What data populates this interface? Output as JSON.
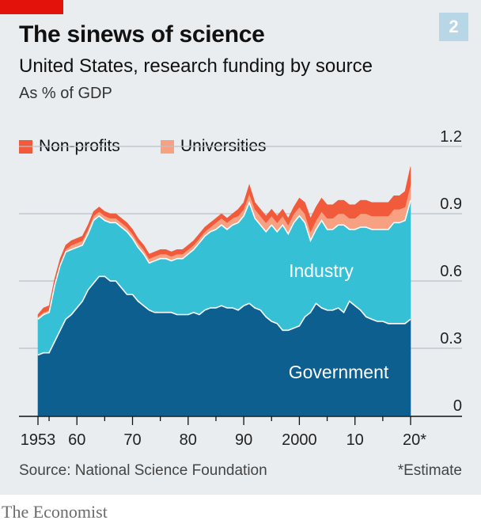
{
  "header": {
    "title": "The sinews of science",
    "chart_number": "2",
    "subtitle": "United States, research funding by source",
    "unit": "As % of GDP"
  },
  "legend": [
    {
      "label": "Non-profits",
      "color": "#f15a3a"
    },
    {
      "label": "Universities",
      "color": "#f7a182"
    }
  ],
  "area_labels": {
    "industry": "Industry",
    "government": "Government"
  },
  "footer": {
    "source": "Source: National Science Foundation",
    "footnote": "*Estimate",
    "brand": "The Economist"
  },
  "colors": {
    "government": "#0c5f8f",
    "industry": "#36c0d6",
    "universities": "#f7a182",
    "nonprofits": "#f15a3a",
    "panel": "#e9edf0",
    "grid": "#b9c2c9",
    "accent": "#e3120b"
  },
  "chart_data": {
    "type": "area",
    "stacked": true,
    "x_tick_labels": [
      "1953",
      "60",
      "70",
      "80",
      "90",
      "2000",
      "10",
      "20*"
    ],
    "x_tick_values": [
      1953,
      1960,
      1970,
      1980,
      1990,
      2000,
      2010,
      2020
    ],
    "x_range": [
      1953,
      2020
    ],
    "y_tick_labels": [
      "0",
      "0.3",
      "0.6",
      "0.9",
      "1.2"
    ],
    "y_tick_values": [
      0,
      0.3,
      0.6,
      0.9,
      1.2
    ],
    "ylim": [
      0,
      1.2
    ],
    "y_axis_side": "right",
    "grid": true,
    "legend_position": "top-left",
    "x": [
      1953,
      1954,
      1955,
      1956,
      1957,
      1958,
      1959,
      1960,
      1961,
      1962,
      1963,
      1964,
      1965,
      1966,
      1967,
      1968,
      1969,
      1970,
      1971,
      1972,
      1973,
      1974,
      1975,
      1976,
      1977,
      1978,
      1979,
      1980,
      1981,
      1982,
      1983,
      1984,
      1985,
      1986,
      1987,
      1988,
      1989,
      1990,
      1991,
      1992,
      1993,
      1994,
      1995,
      1996,
      1997,
      1998,
      1999,
      2000,
      2001,
      2002,
      2003,
      2004,
      2005,
      2006,
      2007,
      2008,
      2009,
      2010,
      2011,
      2012,
      2013,
      2014,
      2015,
      2016,
      2017,
      2018,
      2019,
      2020
    ],
    "series": [
      {
        "name": "Government",
        "values": [
          0.27,
          0.28,
          0.28,
          0.33,
          0.38,
          0.43,
          0.45,
          0.48,
          0.51,
          0.56,
          0.59,
          0.62,
          0.62,
          0.6,
          0.6,
          0.57,
          0.54,
          0.54,
          0.51,
          0.49,
          0.47,
          0.46,
          0.46,
          0.46,
          0.46,
          0.45,
          0.45,
          0.45,
          0.46,
          0.45,
          0.47,
          0.48,
          0.48,
          0.49,
          0.48,
          0.48,
          0.47,
          0.49,
          0.5,
          0.48,
          0.47,
          0.44,
          0.42,
          0.41,
          0.38,
          0.38,
          0.39,
          0.4,
          0.44,
          0.46,
          0.5,
          0.48,
          0.47,
          0.47,
          0.48,
          0.46,
          0.51,
          0.49,
          0.47,
          0.44,
          0.43,
          0.42,
          0.42,
          0.41,
          0.41,
          0.41,
          0.41,
          0.43
        ]
      },
      {
        "name": "Industry",
        "values": [
          0.16,
          0.17,
          0.18,
          0.25,
          0.29,
          0.3,
          0.29,
          0.27,
          0.25,
          0.25,
          0.28,
          0.27,
          0.25,
          0.26,
          0.26,
          0.27,
          0.28,
          0.25,
          0.24,
          0.23,
          0.21,
          0.23,
          0.24,
          0.24,
          0.23,
          0.25,
          0.25,
          0.27,
          0.28,
          0.32,
          0.33,
          0.34,
          0.35,
          0.36,
          0.35,
          0.37,
          0.39,
          0.4,
          0.45,
          0.4,
          0.38,
          0.38,
          0.43,
          0.41,
          0.47,
          0.43,
          0.47,
          0.49,
          0.42,
          0.32,
          0.33,
          0.39,
          0.36,
          0.36,
          0.37,
          0.39,
          0.32,
          0.34,
          0.37,
          0.4,
          0.4,
          0.41,
          0.41,
          0.42,
          0.45,
          0.45,
          0.46,
          0.53
        ]
      },
      {
        "name": "Universities",
        "values": [
          0.01,
          0.01,
          0.01,
          0.01,
          0.01,
          0.01,
          0.02,
          0.02,
          0.02,
          0.02,
          0.02,
          0.02,
          0.02,
          0.02,
          0.02,
          0.02,
          0.02,
          0.02,
          0.02,
          0.02,
          0.02,
          0.02,
          0.02,
          0.02,
          0.02,
          0.02,
          0.02,
          0.02,
          0.02,
          0.02,
          0.02,
          0.02,
          0.03,
          0.03,
          0.03,
          0.03,
          0.03,
          0.03,
          0.04,
          0.04,
          0.04,
          0.04,
          0.04,
          0.04,
          0.04,
          0.04,
          0.04,
          0.04,
          0.04,
          0.04,
          0.04,
          0.04,
          0.05,
          0.05,
          0.05,
          0.05,
          0.05,
          0.05,
          0.06,
          0.06,
          0.06,
          0.06,
          0.06,
          0.06,
          0.06,
          0.06,
          0.06,
          0.07
        ]
      },
      {
        "name": "Non-profits",
        "values": [
          0.01,
          0.02,
          0.02,
          0.02,
          0.02,
          0.02,
          0.02,
          0.02,
          0.02,
          0.02,
          0.02,
          0.02,
          0.02,
          0.02,
          0.02,
          0.02,
          0.02,
          0.02,
          0.02,
          0.02,
          0.02,
          0.02,
          0.02,
          0.02,
          0.02,
          0.02,
          0.02,
          0.02,
          0.02,
          0.02,
          0.02,
          0.02,
          0.02,
          0.02,
          0.02,
          0.02,
          0.03,
          0.03,
          0.04,
          0.03,
          0.03,
          0.03,
          0.03,
          0.03,
          0.03,
          0.03,
          0.03,
          0.04,
          0.05,
          0.06,
          0.06,
          0.06,
          0.06,
          0.06,
          0.06,
          0.06,
          0.06,
          0.06,
          0.06,
          0.06,
          0.06,
          0.06,
          0.06,
          0.06,
          0.06,
          0.06,
          0.07,
          0.08
        ]
      }
    ]
  }
}
